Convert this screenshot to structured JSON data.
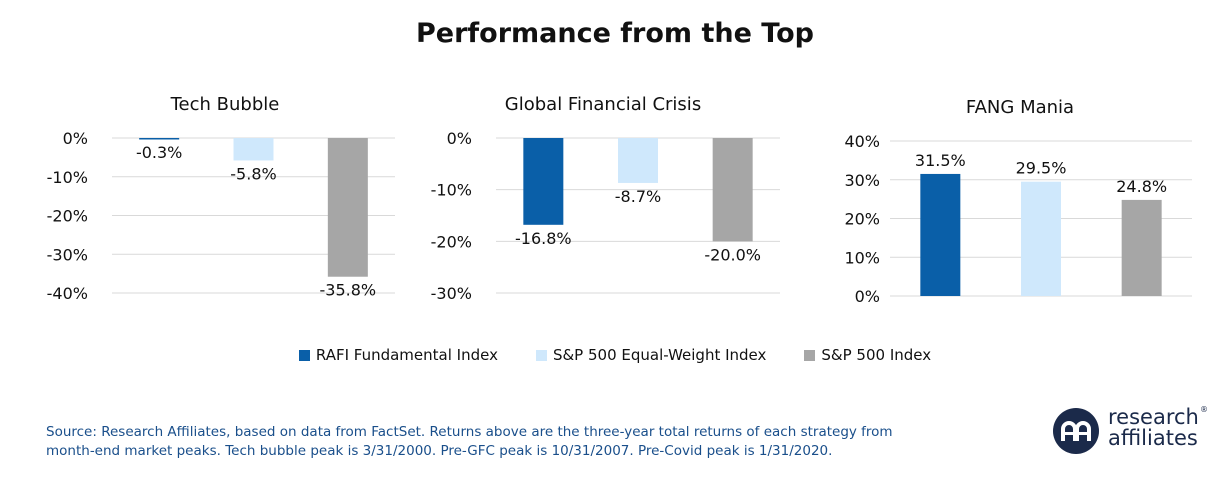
{
  "title": "Performance from the Top",
  "colors": {
    "rafi": "#0a5fa8",
    "ew": "#cfe8fc",
    "sp": "#a6a6a6",
    "source_text": "#1a4f8b",
    "logo": "#1b2a4a"
  },
  "series_names": [
    "RAFI Fundamental Index",
    "S&P 500 Equal-Weight Index",
    "S&P 500 Index"
  ],
  "chart_data": [
    {
      "type": "bar",
      "title": "Tech Bubble",
      "categories": [
        "RAFI Fundamental Index",
        "S&P 500 Equal-Weight Index",
        "S&P 500 Index"
      ],
      "values": [
        -0.3,
        -5.8,
        -35.8
      ],
      "value_labels": [
        "-0.3%",
        "-5.8%",
        "-35.8%"
      ],
      "ylim": [
        -40,
        0
      ],
      "yticks": [
        0,
        -10,
        -20,
        -30,
        -40
      ],
      "ytick_labels": [
        "0%",
        "-10%",
        "-20%",
        "-30%",
        "-40%"
      ],
      "unit": "%"
    },
    {
      "type": "bar",
      "title": "Global Financial Crisis",
      "categories": [
        "RAFI Fundamental Index",
        "S&P 500 Equal-Weight Index",
        "S&P 500 Index"
      ],
      "values": [
        -16.8,
        -8.7,
        -20.0
      ],
      "value_labels": [
        "-16.8%",
        "-8.7%",
        "-20.0%"
      ],
      "ylim": [
        -30,
        0
      ],
      "yticks": [
        0,
        -10,
        -20,
        -30
      ],
      "ytick_labels": [
        "0%",
        "-10%",
        "-20%",
        "-30%"
      ],
      "unit": "%"
    },
    {
      "type": "bar",
      "title": "FANG Mania",
      "categories": [
        "RAFI Fundamental Index",
        "S&P 500 Equal-Weight Index",
        "S&P 500 Index"
      ],
      "values": [
        31.5,
        29.5,
        24.8
      ],
      "value_labels": [
        "31.5%",
        "29.5%",
        "24.8%"
      ],
      "ylim": [
        0,
        40
      ],
      "yticks": [
        0,
        10,
        20,
        30,
        40
      ],
      "ytick_labels": [
        "0%",
        "10%",
        "20%",
        "30%",
        "40%"
      ],
      "unit": "%"
    }
  ],
  "legend": {
    "items": [
      {
        "label": "RAFI Fundamental Index",
        "color": "#0a5fa8"
      },
      {
        "label": "S&P 500 Equal-Weight Index",
        "color": "#cfe8fc"
      },
      {
        "label": "S&P 500 Index",
        "color": "#a6a6a6"
      }
    ]
  },
  "source": {
    "line1": "Source: Research Affiliates, based on data from FactSet. Returns above are the three-year total returns of each strategy from",
    "line2": "month-end market peaks. Tech bubble peak is 3/31/2000. Pre-GFC peak is 10/31/2007. Pre-Covid peak is 1/31/2020."
  },
  "logo": {
    "line1": "research",
    "line2": "affiliates",
    "reg": "®",
    "icon": "ra-monogram-icon"
  }
}
